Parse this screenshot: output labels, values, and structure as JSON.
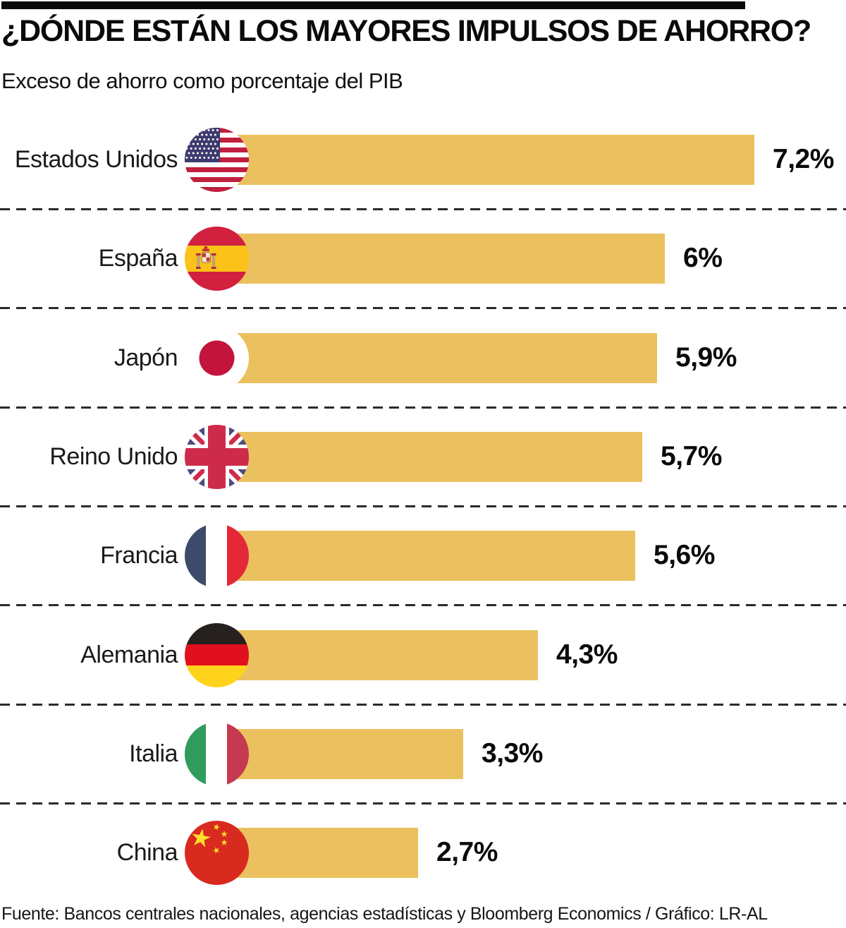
{
  "header": {
    "title": "¿DÓNDE ESTÁN LOS MAYORES IMPULSOS DE AHORRO?",
    "subtitle": "Exceso de ahorro como porcentaje del PIB"
  },
  "chart_data": {
    "type": "bar",
    "orientation": "horizontal",
    "title": "¿DÓNDE ESTÁN LOS MAYORES IMPULSOS DE AHORRO?",
    "subtitle": "Exceso de ahorro como porcentaje del PIB",
    "xlabel": "",
    "ylabel": "",
    "unit": "% del PIB",
    "xlim": [
      0,
      8
    ],
    "grid": false,
    "legend": "none",
    "bar_color": "#EAC15E",
    "categories": [
      "Estados Unidos",
      "España",
      "Japón",
      "Reino Unido",
      "Francia",
      "Alemania",
      "Italia",
      "China"
    ],
    "values": [
      7.2,
      6.0,
      5.9,
      5.7,
      5.6,
      4.3,
      3.3,
      2.7
    ],
    "rows": [
      {
        "label": "Estados Unidos",
        "value": 7.2,
        "value_label": "7,2%",
        "flag": "us"
      },
      {
        "label": "España",
        "value": 6.0,
        "value_label": "6%",
        "flag": "es"
      },
      {
        "label": "Japón",
        "value": 5.9,
        "value_label": "5,9%",
        "flag": "jp"
      },
      {
        "label": "Reino Unido",
        "value": 5.7,
        "value_label": "5,7%",
        "flag": "gb"
      },
      {
        "label": "Francia",
        "value": 5.6,
        "value_label": "5,6%",
        "flag": "fr"
      },
      {
        "label": "Alemania",
        "value": 4.3,
        "value_label": "4,3%",
        "flag": "de"
      },
      {
        "label": "Italia",
        "value": 3.3,
        "value_label": "3,3%",
        "flag": "it"
      },
      {
        "label": "China",
        "value": 2.7,
        "value_label": "2,7%",
        "flag": "cn"
      }
    ],
    "source": "Fuente: Bancos centrales nacionales, agencias estadísticas y Bloomberg Economics / Gráfico: LR-AL"
  },
  "colors": {
    "bar": "#EAC15E",
    "title_bar": "#0A0A0A",
    "separator": "#2B2B2B"
  }
}
